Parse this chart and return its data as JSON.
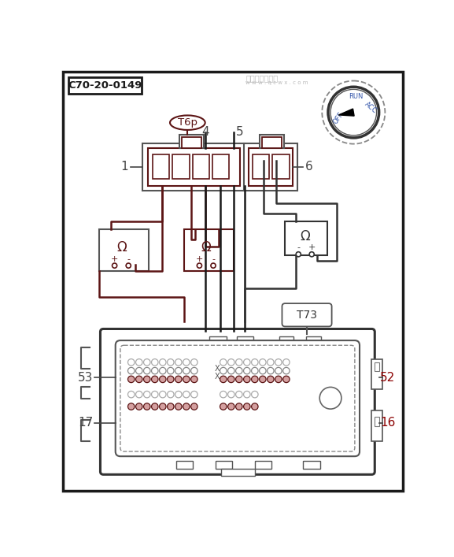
{
  "bg": "#ffffff",
  "bk": "#1a1a1a",
  "dr": "#5c1515",
  "gy": "#555555",
  "lc": "#444444",
  "pin_light": "#999999",
  "pin_brown": "#7a3030",
  "title": "C70-20-0149",
  "T6p": "T6p",
  "T73": "T73",
  "fw": 5.77,
  "fh": 7.07
}
